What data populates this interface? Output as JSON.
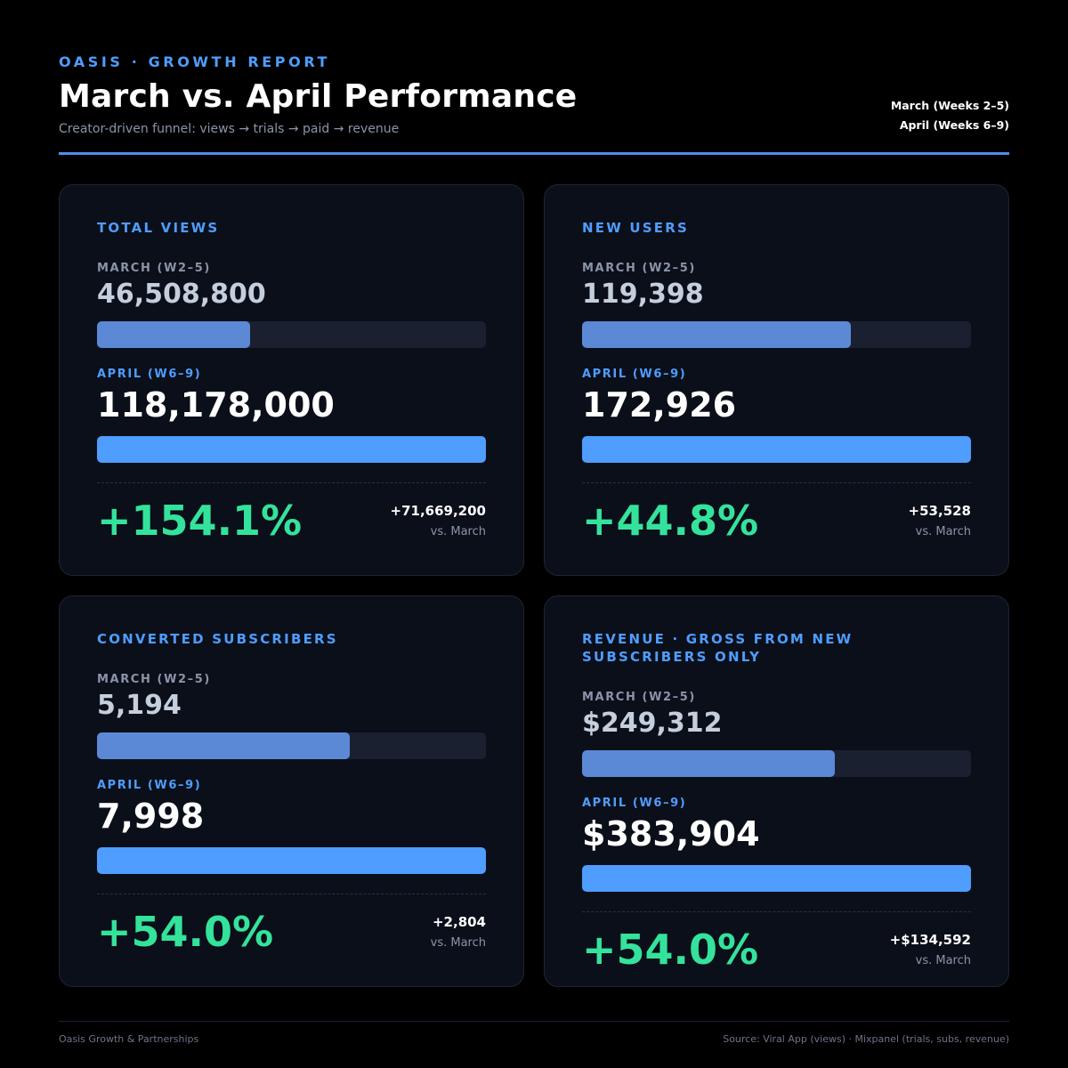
{
  "header": {
    "eyebrow": "OASIS · GROWTH REPORT",
    "title": "March vs. April Performance",
    "subtitle": "Creator-driven funnel: views → trials → paid → revenue",
    "period_march": "March (Weeks 2–5)",
    "period_april": "April (Weeks 6–9)"
  },
  "colors": {
    "accent": "#4f9dff",
    "march_bar": "#5b89d6",
    "april_bar": "#4f9dff",
    "positive": "#34e39b",
    "card_bg": "#0b0f1a"
  },
  "cards": [
    {
      "title": "TOTAL VIEWS",
      "march_label": "MARCH (W2–5)",
      "march_value": "46,508,800",
      "march_fraction": 0.3935,
      "april_label": "APRIL (W6–9)",
      "april_value": "118,178,000",
      "april_fraction": 1.0,
      "pct_change": "+154.1%",
      "delta": "+71,669,200",
      "vs": "vs. March"
    },
    {
      "title": "NEW USERS",
      "march_label": "MARCH (W2–5)",
      "march_value": "119,398",
      "march_fraction": 0.6904,
      "april_label": "APRIL (W6–9)",
      "april_value": "172,926",
      "april_fraction": 1.0,
      "pct_change": "+44.8%",
      "delta": "+53,528",
      "vs": "vs. March"
    },
    {
      "title": "CONVERTED SUBSCRIBERS",
      "march_label": "MARCH (W2–5)",
      "march_value": "5,194",
      "march_fraction": 0.6494,
      "april_label": "APRIL (W6–9)",
      "april_value": "7,998",
      "april_fraction": 1.0,
      "pct_change": "+54.0%",
      "delta": "+2,804",
      "vs": "vs. March"
    },
    {
      "title": "REVENUE · GROSS FROM NEW SUBSCRIBERS ONLY",
      "march_label": "MARCH (W2–5)",
      "march_value": "$249,312",
      "march_fraction": 0.6494,
      "april_label": "APRIL (W6–9)",
      "april_value": "$383,904",
      "april_fraction": 1.0,
      "pct_change": "+54.0%",
      "delta": "+$134,592",
      "vs": "vs. March"
    }
  ],
  "footer": {
    "left": "Oasis Growth & Partnerships",
    "right": "Source: Viral App (views) · Mixpanel (trials, subs, revenue)"
  }
}
